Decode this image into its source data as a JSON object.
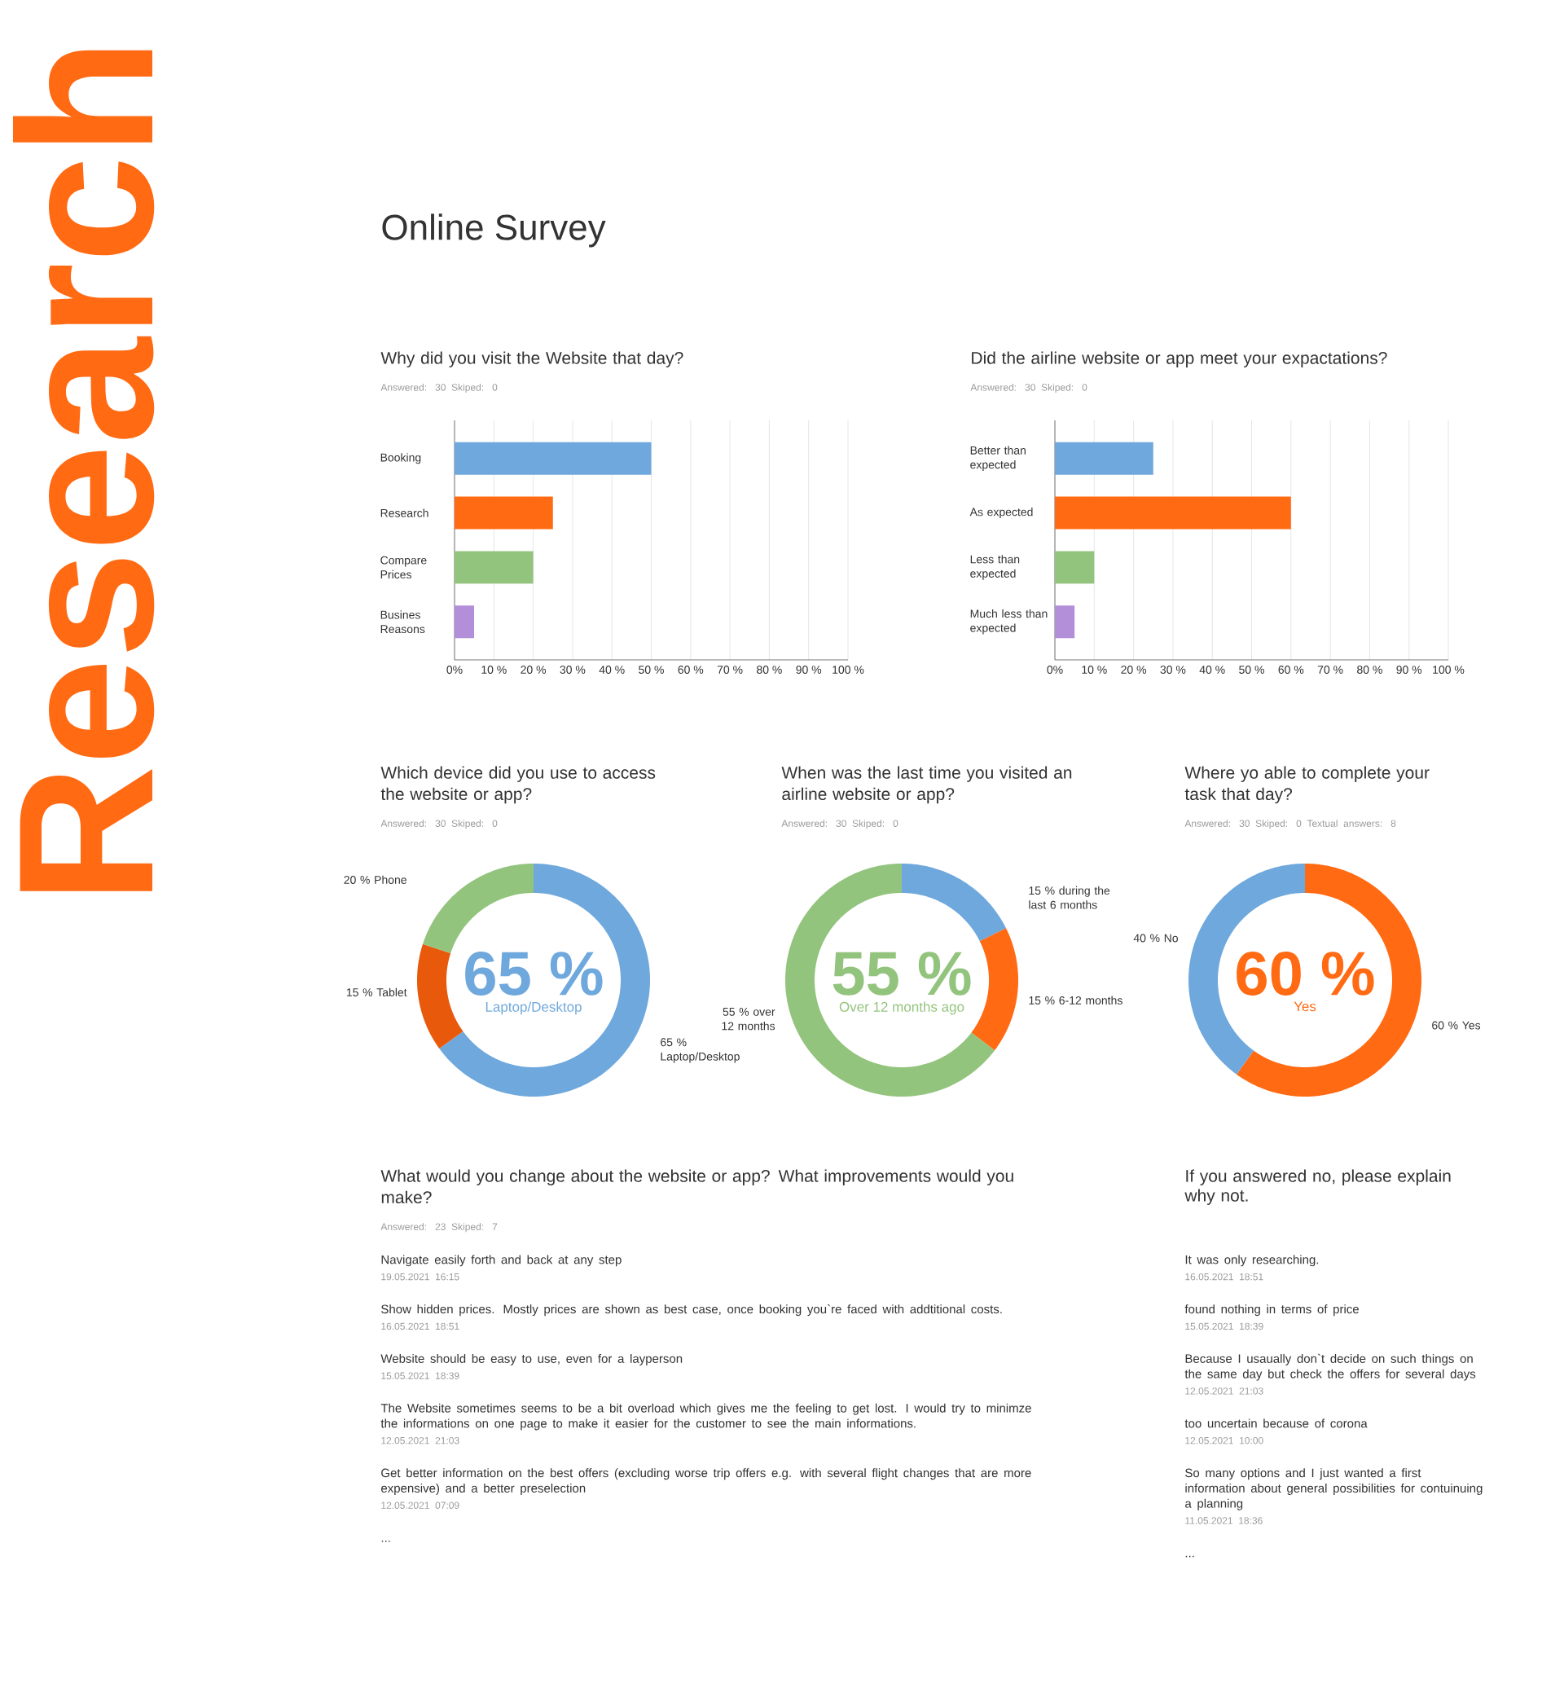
{
  "chart_data": [
    {
      "type": "other",
      "title": "Online Survey",
      "annotations": [
        "Research"
      ]
    },
    {
      "type": "bar",
      "orientation": "horizontal",
      "title": "Why did you visit the Website that day?",
      "subtitle": "Answered: 30   Skiped: 0",
      "categories": [
        "Booking",
        "Research",
        "Compare Prices",
        "Busines Reasons"
      ],
      "values": [
        50,
        25,
        20,
        5
      ],
      "colors": [
        "#6fa8dc",
        "#ff6a13",
        "#93c47d",
        "#b48fd9"
      ],
      "xlim": [
        0,
        100
      ],
      "xticks": [
        {
          "value": 0,
          "label": "0%"
        },
        {
          "value": 10,
          "label": "10 %"
        },
        {
          "value": 20,
          "label": "20 %"
        },
        {
          "value": 30,
          "label": "30 %"
        },
        {
          "value": 40,
          "label": "40 %"
        },
        {
          "value": 50,
          "label": "50 %"
        },
        {
          "value": 60,
          "label": "60 %"
        },
        {
          "value": 70,
          "label": "70 %"
        },
        {
          "value": 80,
          "label": "80 %"
        },
        {
          "value": 90,
          "label": "90 %"
        },
        {
          "value": 100,
          "label": "100 %"
        }
      ],
      "grid": "x"
    },
    {
      "type": "bar",
      "orientation": "horizontal",
      "title": "Did the airline website or app meet your expactations?",
      "subtitle": "Answered: 30   Skiped: 0",
      "categories": [
        "Better than expected",
        "As expected",
        "Less than expected",
        "Much less than expected"
      ],
      "values": [
        25,
        60,
        10,
        5
      ],
      "colors": [
        "#6fa8dc",
        "#ff6a13",
        "#93c47d",
        "#b48fd9"
      ],
      "xlim": [
        0,
        100
      ],
      "xticks": [
        {
          "value": 0,
          "label": "0%"
        },
        {
          "value": 10,
          "label": "10 %"
        },
        {
          "value": 20,
          "label": "20 %"
        },
        {
          "value": 30,
          "label": "30 %"
        },
        {
          "value": 40,
          "label": "40 %"
        },
        {
          "value": 50,
          "label": "50 %"
        },
        {
          "value": 60,
          "label": "60 %"
        },
        {
          "value": 70,
          "label": "70 %"
        },
        {
          "value": 80,
          "label": "80 %"
        },
        {
          "value": 90,
          "label": "90 %"
        },
        {
          "value": 100,
          "label": "100 %"
        }
      ],
      "grid": "x"
    },
    {
      "type": "donut",
      "title": "Which device did you use to access the website or app?",
      "subtitle": "Answered: 30   Skiped: 0",
      "categories": [
        "Laptop/Desktop",
        "Tablet",
        "Phone"
      ],
      "values": [
        65,
        15,
        20
      ],
      "value_labels": [
        "65 %",
        "15 %",
        "20 %"
      ],
      "colors": [
        "#6fa8dc",
        "#e8590c",
        "#93c47d"
      ],
      "annotations": [
        "65 %",
        "Laptop/Desktop"
      ]
    },
    {
      "type": "donut",
      "title": "When was the last time you visited an airline website or app?",
      "subtitle": "Answered: 30   Skiped: 0",
      "categories": [
        "during the last 6 months",
        "6-12 months",
        "over 12 months"
      ],
      "values": [
        15,
        15,
        55
      ],
      "value_labels": [
        "15 %",
        "15 %",
        "55 %"
      ],
      "colors": [
        "#6fa8dc",
        "#ff6a13",
        "#93c47d"
      ],
      "annotations": [
        "55 %",
        "Over 12 months ago"
      ]
    },
    {
      "type": "donut",
      "title": "Where yo able to complete your task that day?",
      "subtitle": "Answered: 30   Skiped: 0   Textual answers: 8",
      "categories": [
        "Yes",
        "No"
      ],
      "values": [
        60,
        40
      ],
      "value_labels": [
        "60 %",
        "40 %"
      ],
      "colors": [
        "#ff6a13",
        "#6fa8dc"
      ],
      "annotations": [
        "60 %",
        "Yes"
      ]
    },
    {
      "type": "other",
      "title": "What would you change about the website or app? What improvements would you make?",
      "subtitle": "Answered: 23   Skiped: 7",
      "annotations": [
        "Navigate easily forth and back at any step",
        "19.05.2021 16:15",
        "Show hidden prices. Mostly prices are shown as best case, once booking you`re faced with addtitional costs.",
        "16.05.2021 18:51",
        "Website should be easy to use, even for a layperson",
        "15.05.2021 18:39",
        "The Website sometimes seems to be a bit overload which gives me the feeling to get lost. I would try to minimze the informations on one page to make it easier for the customer to see the main informations.",
        "12.05.2021 21:03",
        "Get better information on the best offers (excluding worse trip offers e.g. with several flight changes that are more expensive) and a better preselection",
        "12.05.2021 07:09",
        "..."
      ]
    },
    {
      "type": "other",
      "title": "If you answered no, please explain why not.",
      "annotations": [
        "It was only researching.",
        "16.05.2021 18:51",
        "found nothing in terms of price",
        "15.05.2021 18:39",
        "Because I usaually don`t decide on such things on the same day but check the offers for several days",
        "12.05.2021 21:03",
        "too uncertain because of corona",
        "12.05.2021 10:00",
        "So many options and I just wanted a first information about general possibilities for contuinuing a planning",
        "11.05.2021 18:36",
        "..."
      ]
    }
  ]
}
